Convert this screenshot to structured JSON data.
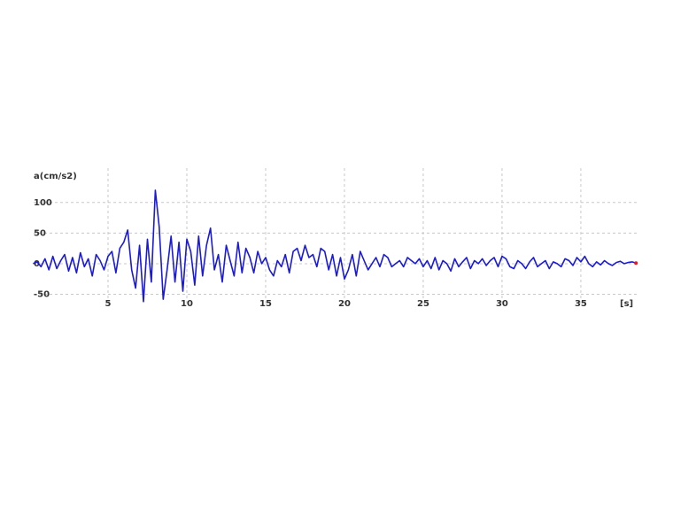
{
  "chart_data": {
    "type": "line",
    "y_label": "a(cm/s2)",
    "x_label": "[s]",
    "xlim": [
      0,
      38.6
    ],
    "xticks": [
      5,
      10,
      15,
      20,
      25,
      30,
      35
    ],
    "ylim": [
      -68,
      156
    ],
    "yticks": [
      -50,
      0,
      50,
      100
    ],
    "grid": true,
    "end_marker_color": "#e02020",
    "x": [
      0.25,
      0.5,
      0.75,
      1,
      1.25,
      1.5,
      1.75,
      2,
      2.25,
      2.5,
      2.75,
      3,
      3.25,
      3.5,
      3.75,
      4,
      4.25,
      4.5,
      4.75,
      5,
      5.25,
      5.5,
      5.75,
      6,
      6.25,
      6.5,
      6.75,
      7,
      7.25,
      7.5,
      7.75,
      8,
      8.25,
      8.5,
      8.75,
      9,
      9.25,
      9.5,
      9.75,
      10,
      10.25,
      10.5,
      10.75,
      11,
      11.25,
      11.5,
      11.75,
      12,
      12.25,
      12.5,
      12.75,
      13,
      13.25,
      13.5,
      13.75,
      14,
      14.25,
      14.5,
      14.75,
      15,
      15.25,
      15.5,
      15.75,
      16,
      16.25,
      16.5,
      16.75,
      17,
      17.25,
      17.5,
      17.75,
      18,
      18.25,
      18.5,
      18.75,
      19,
      19.25,
      19.5,
      19.75,
      20,
      20.25,
      20.5,
      20.75,
      21,
      21.25,
      21.5,
      21.75,
      22,
      22.25,
      22.5,
      22.75,
      23,
      23.25,
      23.5,
      23.75,
      24,
      24.25,
      24.5,
      24.75,
      25,
      25.25,
      25.5,
      25.75,
      26,
      26.25,
      26.5,
      26.75,
      27,
      27.25,
      27.5,
      27.75,
      28,
      28.25,
      28.5,
      28.75,
      29,
      29.25,
      29.5,
      29.75,
      30,
      30.25,
      30.5,
      30.75,
      31,
      31.25,
      31.5,
      31.75,
      32,
      32.25,
      32.5,
      32.75,
      33,
      33.25,
      33.5,
      33.75,
      34,
      34.25,
      34.5,
      34.75,
      35,
      35.25,
      35.5,
      35.75,
      36,
      36.25,
      36.5,
      36.75,
      37,
      37.25,
      37.5,
      37.75,
      38,
      38.25,
      38.5
    ],
    "series": [
      {
        "color": "#1a1ad8",
        "values": [
          0,
          3,
          -5,
          8,
          -10,
          12,
          -8,
          5,
          15,
          -12,
          10,
          -15,
          18,
          -5,
          8,
          -20,
          15,
          5,
          -10,
          12,
          20,
          -15,
          25,
          35,
          55,
          -10,
          -40,
          30,
          -62,
          40,
          -30,
          120,
          60,
          -58,
          -10,
          45,
          -30,
          35,
          -45,
          40,
          20,
          -35,
          45,
          -20,
          30,
          58,
          -10,
          15,
          -30,
          30,
          5,
          -20,
          35,
          -15,
          25,
          10,
          -15,
          20,
          0,
          10,
          -10,
          -20,
          5,
          -5,
          15,
          -15,
          20,
          25,
          5,
          30,
          10,
          15,
          -5,
          25,
          20,
          -10,
          15,
          -20,
          10,
          -25,
          -10,
          15,
          -20,
          20,
          5,
          -10,
          0,
          10,
          -5,
          15,
          10,
          -5,
          0,
          5,
          -5,
          10,
          5,
          0,
          8,
          -5,
          5,
          -8,
          10,
          -10,
          5,
          0,
          -12,
          8,
          -5,
          3,
          10,
          -8,
          5,
          0,
          8,
          -3,
          5,
          10,
          -5,
          12,
          8,
          -5,
          -8,
          5,
          0,
          -8,
          3,
          10,
          -5,
          0,
          5,
          -8,
          3,
          0,
          -5,
          8,
          5,
          -3,
          10,
          3,
          12,
          0,
          -5,
          3,
          -2,
          5,
          0,
          -3,
          2,
          4,
          0,
          2,
          3,
          1
        ]
      }
    ]
  }
}
